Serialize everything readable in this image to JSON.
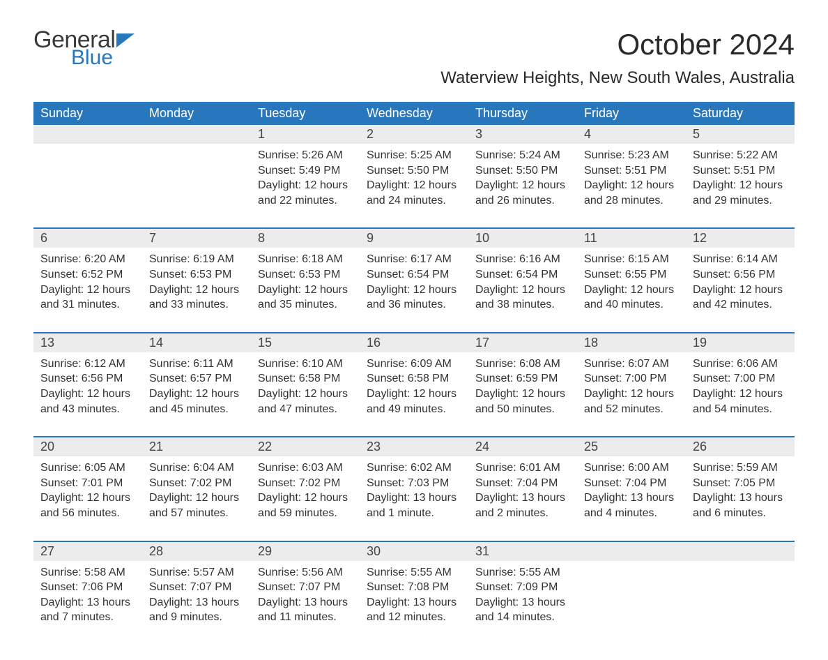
{
  "brand": {
    "word1": "General",
    "word2": "Blue",
    "flag_color": "#2876bb"
  },
  "title": "October 2024",
  "subtitle": "Waterview Heights, New South Wales, Australia",
  "colors": {
    "header_bg": "#2876bb",
    "header_text": "#ffffff",
    "daynum_bg": "#ececec",
    "week_border": "#2876bb",
    "body_text": "#333333",
    "background": "#ffffff"
  },
  "typography": {
    "title_fontsize": 42,
    "subtitle_fontsize": 24,
    "dayhead_fontsize": 18,
    "daynum_fontsize": 18,
    "cell_fontsize": 16
  },
  "day_headers": [
    "Sunday",
    "Monday",
    "Tuesday",
    "Wednesday",
    "Thursday",
    "Friday",
    "Saturday"
  ],
  "weeks": [
    [
      null,
      null,
      {
        "n": "1",
        "sunrise": "Sunrise: 5:26 AM",
        "sunset": "Sunset: 5:49 PM",
        "dl1": "Daylight: 12 hours",
        "dl2": "and 22 minutes."
      },
      {
        "n": "2",
        "sunrise": "Sunrise: 5:25 AM",
        "sunset": "Sunset: 5:50 PM",
        "dl1": "Daylight: 12 hours",
        "dl2": "and 24 minutes."
      },
      {
        "n": "3",
        "sunrise": "Sunrise: 5:24 AM",
        "sunset": "Sunset: 5:50 PM",
        "dl1": "Daylight: 12 hours",
        "dl2": "and 26 minutes."
      },
      {
        "n": "4",
        "sunrise": "Sunrise: 5:23 AM",
        "sunset": "Sunset: 5:51 PM",
        "dl1": "Daylight: 12 hours",
        "dl2": "and 28 minutes."
      },
      {
        "n": "5",
        "sunrise": "Sunrise: 5:22 AM",
        "sunset": "Sunset: 5:51 PM",
        "dl1": "Daylight: 12 hours",
        "dl2": "and 29 minutes."
      }
    ],
    [
      {
        "n": "6",
        "sunrise": "Sunrise: 6:20 AM",
        "sunset": "Sunset: 6:52 PM",
        "dl1": "Daylight: 12 hours",
        "dl2": "and 31 minutes."
      },
      {
        "n": "7",
        "sunrise": "Sunrise: 6:19 AM",
        "sunset": "Sunset: 6:53 PM",
        "dl1": "Daylight: 12 hours",
        "dl2": "and 33 minutes."
      },
      {
        "n": "8",
        "sunrise": "Sunrise: 6:18 AM",
        "sunset": "Sunset: 6:53 PM",
        "dl1": "Daylight: 12 hours",
        "dl2": "and 35 minutes."
      },
      {
        "n": "9",
        "sunrise": "Sunrise: 6:17 AM",
        "sunset": "Sunset: 6:54 PM",
        "dl1": "Daylight: 12 hours",
        "dl2": "and 36 minutes."
      },
      {
        "n": "10",
        "sunrise": "Sunrise: 6:16 AM",
        "sunset": "Sunset: 6:54 PM",
        "dl1": "Daylight: 12 hours",
        "dl2": "and 38 minutes."
      },
      {
        "n": "11",
        "sunrise": "Sunrise: 6:15 AM",
        "sunset": "Sunset: 6:55 PM",
        "dl1": "Daylight: 12 hours",
        "dl2": "and 40 minutes."
      },
      {
        "n": "12",
        "sunrise": "Sunrise: 6:14 AM",
        "sunset": "Sunset: 6:56 PM",
        "dl1": "Daylight: 12 hours",
        "dl2": "and 42 minutes."
      }
    ],
    [
      {
        "n": "13",
        "sunrise": "Sunrise: 6:12 AM",
        "sunset": "Sunset: 6:56 PM",
        "dl1": "Daylight: 12 hours",
        "dl2": "and 43 minutes."
      },
      {
        "n": "14",
        "sunrise": "Sunrise: 6:11 AM",
        "sunset": "Sunset: 6:57 PM",
        "dl1": "Daylight: 12 hours",
        "dl2": "and 45 minutes."
      },
      {
        "n": "15",
        "sunrise": "Sunrise: 6:10 AM",
        "sunset": "Sunset: 6:58 PM",
        "dl1": "Daylight: 12 hours",
        "dl2": "and 47 minutes."
      },
      {
        "n": "16",
        "sunrise": "Sunrise: 6:09 AM",
        "sunset": "Sunset: 6:58 PM",
        "dl1": "Daylight: 12 hours",
        "dl2": "and 49 minutes."
      },
      {
        "n": "17",
        "sunrise": "Sunrise: 6:08 AM",
        "sunset": "Sunset: 6:59 PM",
        "dl1": "Daylight: 12 hours",
        "dl2": "and 50 minutes."
      },
      {
        "n": "18",
        "sunrise": "Sunrise: 6:07 AM",
        "sunset": "Sunset: 7:00 PM",
        "dl1": "Daylight: 12 hours",
        "dl2": "and 52 minutes."
      },
      {
        "n": "19",
        "sunrise": "Sunrise: 6:06 AM",
        "sunset": "Sunset: 7:00 PM",
        "dl1": "Daylight: 12 hours",
        "dl2": "and 54 minutes."
      }
    ],
    [
      {
        "n": "20",
        "sunrise": "Sunrise: 6:05 AM",
        "sunset": "Sunset: 7:01 PM",
        "dl1": "Daylight: 12 hours",
        "dl2": "and 56 minutes."
      },
      {
        "n": "21",
        "sunrise": "Sunrise: 6:04 AM",
        "sunset": "Sunset: 7:02 PM",
        "dl1": "Daylight: 12 hours",
        "dl2": "and 57 minutes."
      },
      {
        "n": "22",
        "sunrise": "Sunrise: 6:03 AM",
        "sunset": "Sunset: 7:02 PM",
        "dl1": "Daylight: 12 hours",
        "dl2": "and 59 minutes."
      },
      {
        "n": "23",
        "sunrise": "Sunrise: 6:02 AM",
        "sunset": "Sunset: 7:03 PM",
        "dl1": "Daylight: 13 hours",
        "dl2": "and 1 minute."
      },
      {
        "n": "24",
        "sunrise": "Sunrise: 6:01 AM",
        "sunset": "Sunset: 7:04 PM",
        "dl1": "Daylight: 13 hours",
        "dl2": "and 2 minutes."
      },
      {
        "n": "25",
        "sunrise": "Sunrise: 6:00 AM",
        "sunset": "Sunset: 7:04 PM",
        "dl1": "Daylight: 13 hours",
        "dl2": "and 4 minutes."
      },
      {
        "n": "26",
        "sunrise": "Sunrise: 5:59 AM",
        "sunset": "Sunset: 7:05 PM",
        "dl1": "Daylight: 13 hours",
        "dl2": "and 6 minutes."
      }
    ],
    [
      {
        "n": "27",
        "sunrise": "Sunrise: 5:58 AM",
        "sunset": "Sunset: 7:06 PM",
        "dl1": "Daylight: 13 hours",
        "dl2": "and 7 minutes."
      },
      {
        "n": "28",
        "sunrise": "Sunrise: 5:57 AM",
        "sunset": "Sunset: 7:07 PM",
        "dl1": "Daylight: 13 hours",
        "dl2": "and 9 minutes."
      },
      {
        "n": "29",
        "sunrise": "Sunrise: 5:56 AM",
        "sunset": "Sunset: 7:07 PM",
        "dl1": "Daylight: 13 hours",
        "dl2": "and 11 minutes."
      },
      {
        "n": "30",
        "sunrise": "Sunrise: 5:55 AM",
        "sunset": "Sunset: 7:08 PM",
        "dl1": "Daylight: 13 hours",
        "dl2": "and 12 minutes."
      },
      {
        "n": "31",
        "sunrise": "Sunrise: 5:55 AM",
        "sunset": "Sunset: 7:09 PM",
        "dl1": "Daylight: 13 hours",
        "dl2": "and 14 minutes."
      },
      null,
      null
    ]
  ]
}
